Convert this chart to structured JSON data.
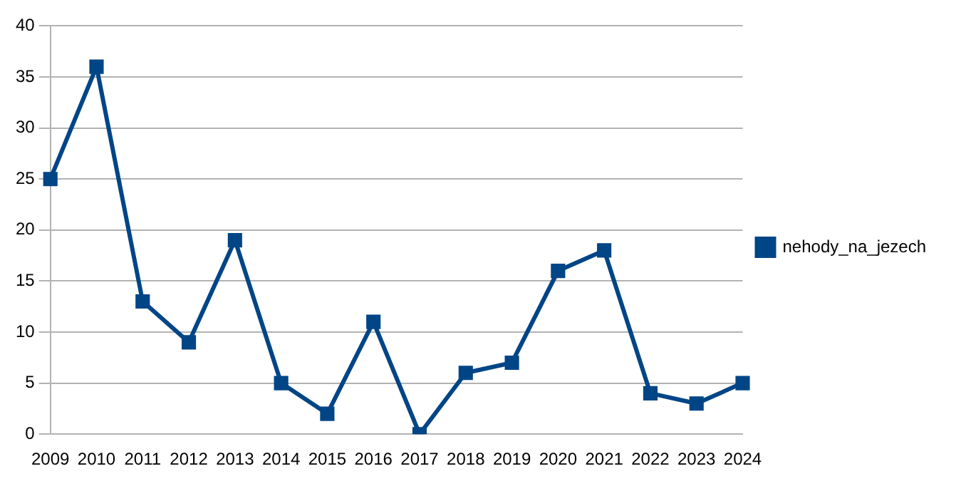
{
  "chart_data": {
    "type": "line",
    "categories": [
      "2009",
      "2010",
      "2011",
      "2012",
      "2013",
      "2014",
      "2015",
      "2016",
      "2017",
      "2018",
      "2019",
      "2020",
      "2021",
      "2022",
      "2023",
      "2024"
    ],
    "series": [
      {
        "name": "nehody_na_jezech",
        "color": "#004586",
        "values": [
          25,
          36,
          13,
          9,
          19,
          5,
          2,
          11,
          0,
          6,
          7,
          16,
          18,
          4,
          3,
          5
        ]
      }
    ],
    "ylim": [
      0,
      40
    ],
    "yticks": [
      0,
      5,
      10,
      15,
      20,
      25,
      30,
      35,
      40
    ],
    "grid": "y",
    "legend": "right",
    "marker": "square",
    "line_style": "solid"
  }
}
